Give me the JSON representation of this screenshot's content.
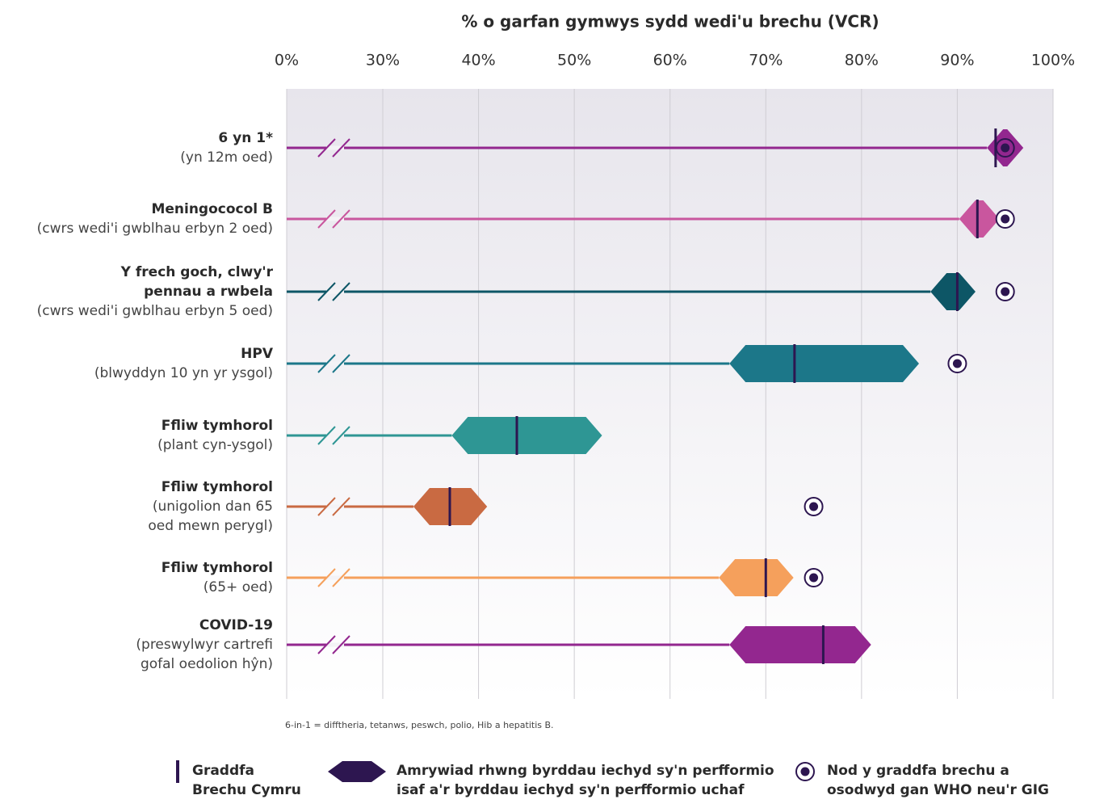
{
  "chart_data": {
    "type": "range",
    "title": "% o garfan gymwys sydd wedi'u brechu (VCR)",
    "xlim": [
      0,
      100
    ],
    "axis_break": 30,
    "xticks": [
      {
        "value": 0,
        "label": "0%"
      },
      {
        "value": 30,
        "label": "30%"
      },
      {
        "value": 40,
        "label": "40%"
      },
      {
        "value": 50,
        "label": "50%"
      },
      {
        "value": 60,
        "label": "60%"
      },
      {
        "value": 70,
        "label": "70%"
      },
      {
        "value": 80,
        "label": "80%"
      },
      {
        "value": 90,
        "label": "90%"
      },
      {
        "value": 100,
        "label": "100%"
      }
    ],
    "grid": true,
    "categories": [
      {
        "title": [
          "6 yn 1*"
        ],
        "subtitle": [
          "(yn 12m oed)"
        ]
      },
      {
        "title": [
          "Meningococol B"
        ],
        "subtitle": [
          "(cwrs wedi'i gwblhau erbyn 2 oed)"
        ]
      },
      {
        "title": [
          "Y frech goch, clwy'r",
          "pennau a rwbela"
        ],
        "subtitle": [
          "(cwrs wedi'i gwblhau erbyn 5 oed)"
        ]
      },
      {
        "title": [
          "HPV"
        ],
        "subtitle": [
          "(blwyddyn 10 yn yr ysgol)"
        ]
      },
      {
        "title": [
          "Ffliw tymhorol"
        ],
        "subtitle": [
          "(plant cyn-ysgol)"
        ]
      },
      {
        "title": [
          "Ffliw tymhorol"
        ],
        "subtitle": [
          "(unigolion dan 65",
          "oed mewn perygl)"
        ]
      },
      {
        "title": [
          "Ffliw tymhorol"
        ],
        "subtitle": [
          "(65+ oed)"
        ]
      },
      {
        "title": [
          "COVID-19"
        ],
        "subtitle": [
          "(preswylwyr cartrefi",
          "gofal oedolion hŷn)"
        ]
      }
    ],
    "colors": [
      "#93278f",
      "#c9569e",
      "#0d5666",
      "#1c7789",
      "#2e9694",
      "#c96a42",
      "#f5a05c",
      "#93278f"
    ],
    "series": [
      {
        "name": [
          "Graddfa",
          "Brechu Cymru"
        ],
        "color": "#2d1650",
        "values": [
          94,
          92.1,
          90,
          73,
          44,
          37,
          70,
          76
        ]
      },
      {
        "name": [
          "Amrywiad rhwng byrddau iechyd sy'n perfformio",
          "isaf a'r byrddau iechyd sy'n perfformio uchaf"
        ],
        "color": "#2d1650",
        "low": [
          93.1,
          90.2,
          87.2,
          66.2,
          37.2,
          33.2,
          65.1,
          66.2
        ],
        "high": [
          96.9,
          94.4,
          91.9,
          86,
          52.9,
          40.9,
          72.9,
          81
        ]
      },
      {
        "name": [
          "Nod y graddfa brechu a",
          "osodwyd gan WHO neu'r GIG"
        ],
        "color": "#2d1650",
        "values": [
          95,
          95,
          95,
          90,
          null,
          75,
          75,
          null
        ]
      }
    ],
    "footnote": "6-in-1 = difftheria, tetanws, peswch, polio, Hib a hepatitis B."
  }
}
